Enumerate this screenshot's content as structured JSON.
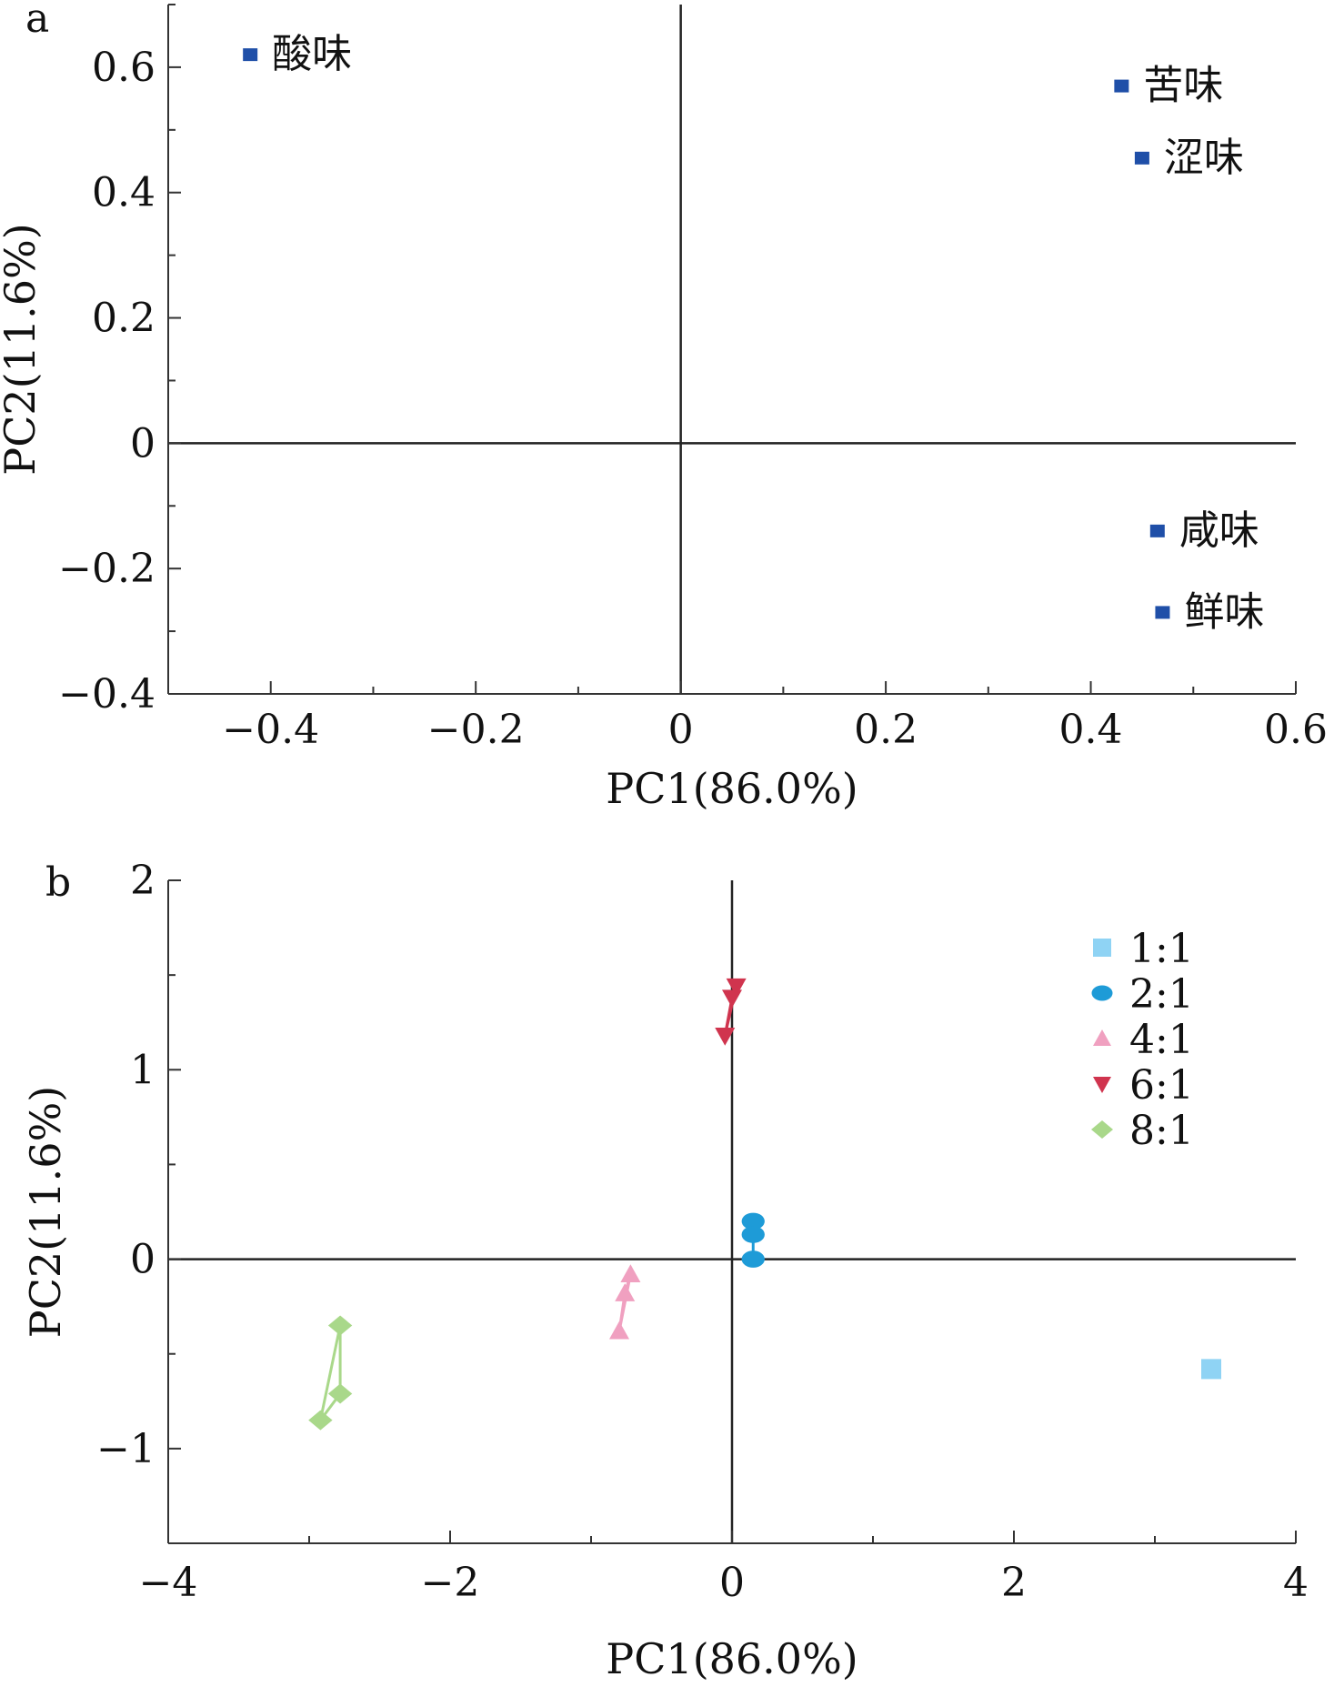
{
  "chart_data": [
    {
      "type": "scatter",
      "panel_label": "a",
      "xlabel": "PC1(86.0%)",
      "ylabel": "PC2(11.6%)",
      "xlim": [
        -0.5,
        0.6
      ],
      "ylim": [
        -0.4,
        0.7
      ],
      "xticks": [
        -0.4,
        -0.2,
        0,
        0.2,
        0.4,
        0.6
      ],
      "xtick_labels": [
        "−0.4",
        "−0.2",
        "0",
        "0.2",
        "0.4",
        "0.6"
      ],
      "yticks": [
        -0.4,
        -0.2,
        0,
        0.2,
        0.4,
        0.6
      ],
      "ytick_labels": [
        "−0.4",
        "−0.2",
        "0",
        "0.2",
        "0.4",
        "0.6"
      ],
      "marker_color": "#1f4fa8",
      "points": [
        {
          "label": "酸味",
          "x": -0.42,
          "y": 0.62
        },
        {
          "label": "苦味",
          "x": 0.43,
          "y": 0.57
        },
        {
          "label": "涩味",
          "x": 0.45,
          "y": 0.455
        },
        {
          "label": "咸味",
          "x": 0.465,
          "y": -0.14
        },
        {
          "label": "鲜味",
          "x": 0.47,
          "y": -0.27
        }
      ]
    },
    {
      "type": "scatter",
      "panel_label": "b",
      "xlabel": "PC1(86.0%)",
      "ylabel": "PC2(11.6%)",
      "xlim": [
        -4,
        4
      ],
      "ylim": [
        -1.5,
        2
      ],
      "xticks": [
        -4,
        -2,
        0,
        2,
        4
      ],
      "xtick_labels": [
        "−4",
        "−2",
        "0",
        "2",
        "4"
      ],
      "yticks": [
        -1,
        0,
        1,
        2
      ],
      "ytick_labels": [
        "−1",
        "0",
        "1",
        "2"
      ],
      "legend_position": "top-right",
      "series": [
        {
          "name": "1:1",
          "marker": "square",
          "color": "#8fd3f4",
          "points": [
            [
              3.4,
              -0.58
            ]
          ]
        },
        {
          "name": "2:1",
          "marker": "circle",
          "color": "#1e9bd7",
          "points": [
            [
              0.15,
              0.2
            ],
            [
              0.15,
              0.13
            ],
            [
              0.15,
              0.0
            ]
          ]
        },
        {
          "name": "4:1",
          "marker": "triangle-up",
          "color": "#f0a0c0",
          "points": [
            [
              -0.72,
              -0.08
            ],
            [
              -0.76,
              -0.18
            ],
            [
              -0.8,
              -0.38
            ]
          ]
        },
        {
          "name": "6:1",
          "marker": "triangle-down",
          "color": "#d0344e",
          "points": [
            [
              0.03,
              1.44
            ],
            [
              0.0,
              1.38
            ],
            [
              -0.05,
              1.18
            ]
          ]
        },
        {
          "name": "8:1",
          "marker": "diamond",
          "color": "#a9d88a",
          "points": [
            [
              -2.78,
              -0.35
            ],
            [
              -2.78,
              -0.71
            ],
            [
              -2.92,
              -0.85
            ]
          ]
        }
      ]
    }
  ]
}
